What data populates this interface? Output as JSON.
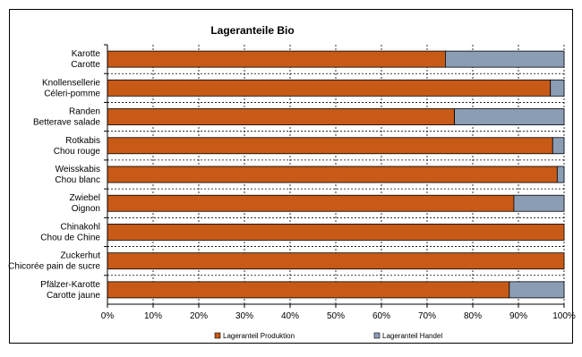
{
  "chart_data": {
    "type": "bar",
    "orientation": "horizontal",
    "stacked": "percent",
    "title": "Lageranteile Bio",
    "categories": [
      [
        "Karotte",
        "Carotte"
      ],
      [
        "Knollensellerie",
        "Céleri-pomme"
      ],
      [
        "Randen",
        "Betterave salade"
      ],
      [
        "Rotkabis",
        "Chou rouge"
      ],
      [
        "Weisskabis",
        "Chou blanc"
      ],
      [
        "Zwiebel",
        "Oignon"
      ],
      [
        "Chinakohl",
        "Chou de Chine"
      ],
      [
        "Zuckerhut",
        "Chicorée pain de sucre"
      ],
      [
        "Pfälzer-Karotte",
        "Carotte jaune"
      ]
    ],
    "series": [
      {
        "name": "Lageranteil Produktion",
        "color": "#c85a17",
        "values": [
          74,
          97,
          76,
          97.5,
          98.5,
          89,
          100,
          100,
          88
        ]
      },
      {
        "name": "Lageranteil Handel",
        "color": "#8b9db5",
        "values": [
          26,
          3,
          24,
          2.5,
          1.5,
          11,
          0,
          0,
          12
        ]
      }
    ],
    "xlim": [
      0,
      100
    ],
    "xticks": [
      "0%",
      "10%",
      "20%",
      "30%",
      "40%",
      "50%",
      "60%",
      "70%",
      "80%",
      "90%",
      "100%"
    ],
    "grid": true,
    "legend_position": "bottom"
  }
}
